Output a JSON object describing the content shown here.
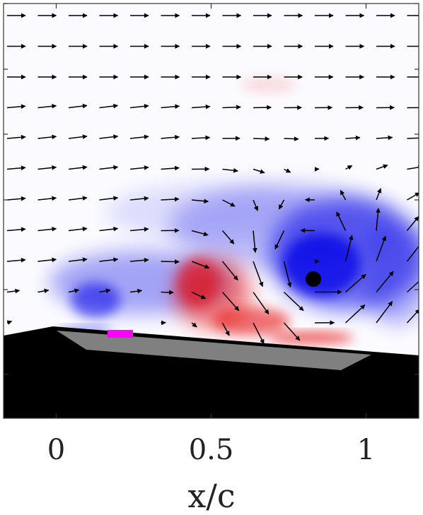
{
  "chart_data": {
    "type": "vector-field",
    "xlabel": "x/c",
    "xlim": [
      -0.17,
      1.17
    ],
    "x_ticks": [
      {
        "value": 0,
        "label": "0"
      },
      {
        "value": 0.5,
        "label": "0.5"
      },
      {
        "value": 1,
        "label": "1"
      }
    ],
    "ylabel": "",
    "grid": false,
    "colormap": {
      "negative": "#0000e6",
      "zero": "#ffffff",
      "positive": "#e60000"
    },
    "vortex_marker": {
      "x": 0.83,
      "color": "#000000"
    },
    "airfoil": {
      "color": "#000000",
      "insert_color": "#808080",
      "marker_color": "#ff00ff"
    },
    "arrow_color": "#000000"
  }
}
